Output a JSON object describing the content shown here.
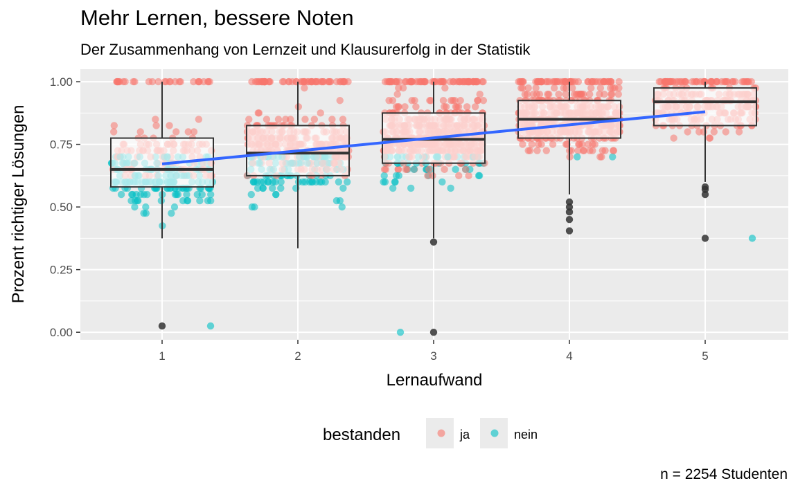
{
  "chart_data": {
    "type": "boxplot+scatter",
    "title": "Mehr Lernen, bessere Noten",
    "subtitle": "Der Zusammenhang von Lernzeit und Klausurerfolg in der Statistik",
    "xlabel": "Lernaufwand",
    "ylabel": "Prozent richtiger Lösungen",
    "caption": "n = 2254 Studenten",
    "categories": [
      "1",
      "2",
      "3",
      "4",
      "5"
    ],
    "ylim": [
      -0.03,
      1.05
    ],
    "yticks": [
      0.0,
      0.25,
      0.5,
      0.75,
      1.0
    ],
    "ytick_labels": [
      "0.00",
      "0.25",
      "0.50",
      "0.75",
      "1.00"
    ],
    "grid": true,
    "legend": {
      "title": "bestanden",
      "position": "bottom",
      "entries": [
        {
          "label": "ja",
          "color": "#F8766D"
        },
        {
          "label": "nein",
          "color": "#00BFC4"
        }
      ]
    },
    "boxes": [
      {
        "x": 1,
        "q1": 0.58,
        "median": 0.65,
        "q3": 0.775,
        "whisker_low": 0.375,
        "whisker_high": 1.0,
        "outliers": [
          0.025
        ]
      },
      {
        "x": 2,
        "q1": 0.625,
        "median": 0.715,
        "q3": 0.825,
        "whisker_low": 0.335,
        "whisker_high": 1.0,
        "outliers": []
      },
      {
        "x": 3,
        "q1": 0.675,
        "median": 0.77,
        "q3": 0.875,
        "whisker_low": 0.375,
        "whisker_high": 1.0,
        "outliers": [
          0.36,
          0.0
        ]
      },
      {
        "x": 4,
        "q1": 0.775,
        "median": 0.85,
        "q3": 0.925,
        "whisker_low": 0.55,
        "whisker_high": 1.0,
        "outliers": [
          0.52,
          0.5,
          0.48,
          0.45,
          0.405
        ]
      },
      {
        "x": 5,
        "q1": 0.825,
        "median": 0.92,
        "q3": 0.975,
        "whisker_low": 0.6,
        "whisker_high": 1.0,
        "outliers": [
          0.58,
          0.57,
          0.55,
          0.375
        ]
      }
    ],
    "trend_line": {
      "color": "#3366FF",
      "x": [
        1,
        5
      ],
      "y": [
        0.672,
        0.88
      ]
    },
    "point_summary": {
      "ja_color": "#F8766D",
      "nein_color": "#00BFC4",
      "nein_max": 0.7,
      "nein_extremes": [
        {
          "x": 1,
          "y": 0.025
        },
        {
          "x": 3,
          "y": 0.0
        },
        {
          "x": 5,
          "y": 0.375
        }
      ]
    }
  }
}
